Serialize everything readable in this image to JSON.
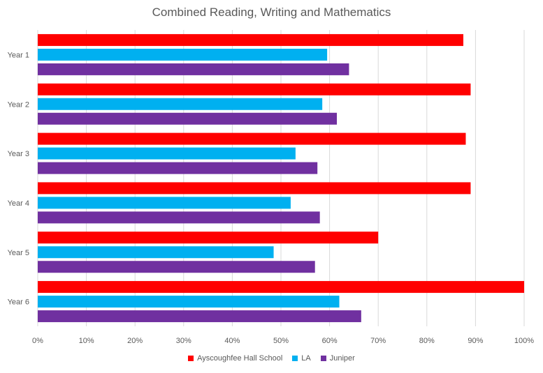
{
  "chart_data": {
    "type": "bar",
    "orientation": "horizontal",
    "title": "Combined Reading, Writing and Mathematics",
    "xlabel": "",
    "ylabel": "",
    "categories": [
      "Year 1",
      "Year 2",
      "Year 3",
      "Year 4",
      "Year 5",
      "Year 6"
    ],
    "series": [
      {
        "name": "Ayscoughfee Hall School",
        "color": "#FF0000",
        "values": [
          87.5,
          89,
          88,
          89,
          70,
          100
        ]
      },
      {
        "name": "LA",
        "color": "#00B0F0",
        "values": [
          59.5,
          58.5,
          53,
          52,
          48.5,
          62
        ]
      },
      {
        "name": "Juniper",
        "color": "#7030A0",
        "values": [
          64,
          61.5,
          57.5,
          58,
          57,
          66.5
        ]
      }
    ],
    "xlim": [
      0,
      100
    ],
    "xticks": [
      "0%",
      "10%",
      "20%",
      "30%",
      "40%",
      "50%",
      "60%",
      "70%",
      "80%",
      "90%",
      "100%"
    ],
    "grid": true,
    "legend_position": "bottom"
  }
}
